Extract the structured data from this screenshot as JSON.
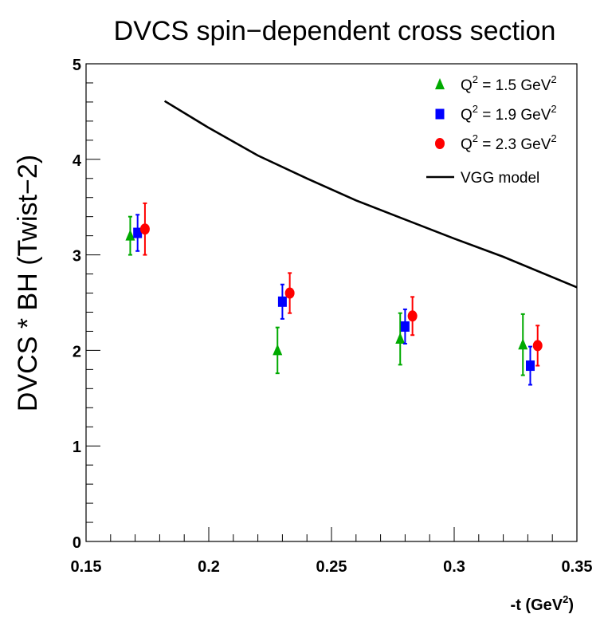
{
  "chart_data": {
    "type": "scatter",
    "title": "DVCS spin−dependent cross section",
    "ylabel": "DVCS * BH    (Twist−2)",
    "xlabel": {
      "base": "-t (GeV",
      "sup": "2",
      "end": ")"
    },
    "xlim": [
      0.15,
      0.35
    ],
    "ylim": [
      0,
      5
    ],
    "x_major_ticks": [
      0.15,
      0.2,
      0.25,
      0.3,
      0.35
    ],
    "x_tick_labels": [
      "0.15",
      "0.2",
      "0.25",
      "0.3",
      "0.35"
    ],
    "y_major_ticks": [
      0,
      1,
      2,
      3,
      4,
      5
    ],
    "y_tick_labels": [
      "0",
      "1",
      "2",
      "3",
      "4",
      "5"
    ],
    "grid": false,
    "legend_position": "top-right",
    "series": [
      {
        "marker": "triangle",
        "color": "#00aa00",
        "legend": {
          "pre": "Q",
          "sup1": "2",
          "mid": " = 1.5 GeV",
          "sup2": "2"
        },
        "points": [
          {
            "x": 0.168,
            "y": 3.2,
            "err": 0.2
          },
          {
            "x": 0.228,
            "y": 2.0,
            "err": 0.24
          },
          {
            "x": 0.278,
            "y": 2.12,
            "err": 0.27
          },
          {
            "x": 0.328,
            "y": 2.06,
            "err": 0.32
          }
        ]
      },
      {
        "marker": "square",
        "color": "#0000ff",
        "legend": {
          "pre": "Q",
          "sup1": "2",
          "mid": " = 1.9 GeV",
          "sup2": "2"
        },
        "points": [
          {
            "x": 0.171,
            "y": 3.23,
            "err": 0.19
          },
          {
            "x": 0.23,
            "y": 2.51,
            "err": 0.18
          },
          {
            "x": 0.28,
            "y": 2.25,
            "err": 0.18
          },
          {
            "x": 0.331,
            "y": 1.84,
            "err": 0.2
          }
        ]
      },
      {
        "marker": "circle",
        "color": "#ff0000",
        "legend": {
          "pre": "Q",
          "sup1": "2",
          "mid": " = 2.3 GeV",
          "sup2": "2"
        },
        "points": [
          {
            "x": 0.174,
            "y": 3.27,
            "err": 0.27
          },
          {
            "x": 0.233,
            "y": 2.6,
            "err": 0.21
          },
          {
            "x": 0.283,
            "y": 2.36,
            "err": 0.2
          },
          {
            "x": 0.334,
            "y": 2.05,
            "err": 0.21
          }
        ]
      }
    ],
    "model": {
      "name": "VGG model",
      "color": "#000000",
      "x": [
        0.182,
        0.2,
        0.22,
        0.24,
        0.26,
        0.28,
        0.3,
        0.32,
        0.35
      ],
      "y": [
        4.61,
        4.33,
        4.04,
        3.8,
        3.57,
        3.37,
        3.17,
        2.98,
        2.66
      ]
    }
  }
}
